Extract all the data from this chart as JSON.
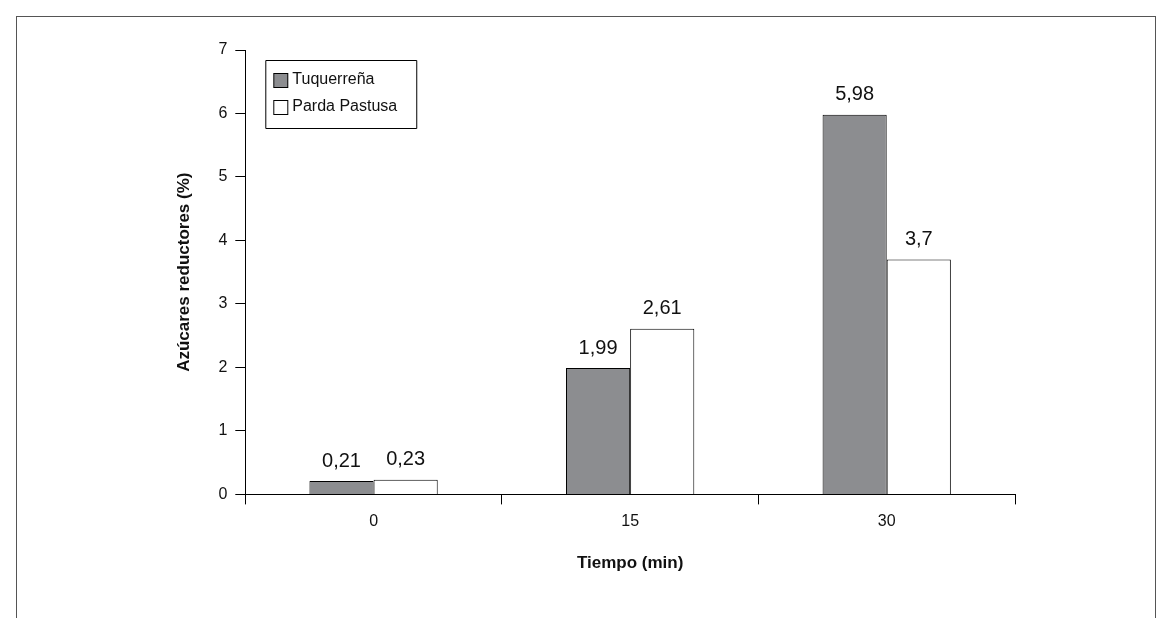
{
  "chart_data": {
    "type": "bar",
    "xlabel": "Tiempo (min)",
    "ylabel": "Azúcares reductores (%)",
    "categories": [
      "0",
      "15",
      "30"
    ],
    "series": [
      {
        "name": "Tuquerreña",
        "color": "#8c8d90",
        "values": [
          0.21,
          1.99,
          5.98
        ],
        "value_labels": [
          "0,21",
          "1,99",
          "5,98"
        ]
      },
      {
        "name": "Parda Pastusa",
        "color": "#ffffff",
        "values": [
          0.23,
          2.61,
          3.7
        ],
        "value_labels": [
          "0,23",
          "2,61",
          "3,7"
        ]
      }
    ],
    "ylim": [
      0,
      7
    ],
    "yticks": [
      0,
      1,
      2,
      3,
      4,
      5,
      6,
      7
    ],
    "grid": false,
    "legend": "top left"
  }
}
